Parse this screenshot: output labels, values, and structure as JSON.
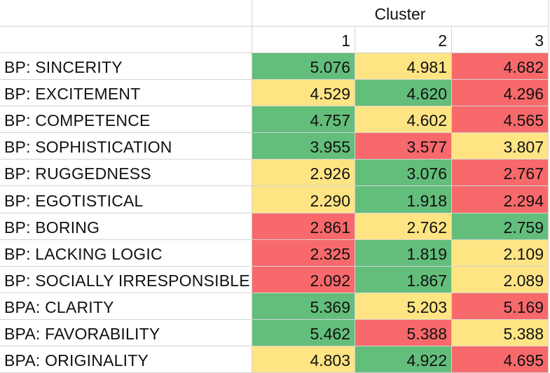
{
  "header": {
    "cluster_label": "Cluster",
    "cluster_ids": [
      "1",
      "2",
      "3"
    ]
  },
  "colors": {
    "high": "#63be7b",
    "mid": "#ffe484",
    "low": "#f8696b"
  },
  "rows": [
    {
      "label": "BP: SINCERITY",
      "values": [
        "5.076",
        "4.981",
        "4.682"
      ],
      "colors": [
        "high",
        "mid",
        "low"
      ]
    },
    {
      "label": "BP: EXCITEMENT",
      "values": [
        "4.529",
        "4.620",
        "4.296"
      ],
      "colors": [
        "mid",
        "high",
        "low"
      ]
    },
    {
      "label": "BP: COMPETENCE",
      "values": [
        "4.757",
        "4.602",
        "4.565"
      ],
      "colors": [
        "high",
        "mid",
        "low"
      ]
    },
    {
      "label": "BP: SOPHISTICATION",
      "values": [
        "3.955",
        "3.577",
        "3.807"
      ],
      "colors": [
        "high",
        "low",
        "mid"
      ]
    },
    {
      "label": "BP: RUGGEDNESS",
      "values": [
        "2.926",
        "3.076",
        "2.767"
      ],
      "colors": [
        "mid",
        "high",
        "low"
      ]
    },
    {
      "label": "BP: EGOTISTICAL",
      "values": [
        "2.290",
        "1.918",
        "2.294"
      ],
      "colors": [
        "mid",
        "high",
        "low"
      ]
    },
    {
      "label": "BP: BORING",
      "values": [
        "2.861",
        "2.762",
        "2.759"
      ],
      "colors": [
        "low",
        "mid",
        "high"
      ]
    },
    {
      "label": "BP: LACKING LOGIC",
      "values": [
        "2.325",
        "1.819",
        "2.109"
      ],
      "colors": [
        "low",
        "high",
        "mid"
      ]
    },
    {
      "label": "BP: SOCIALLY IRRESPONSIBLE",
      "values": [
        "2.092",
        "1.867",
        "2.089"
      ],
      "colors": [
        "low",
        "high",
        "mid"
      ]
    },
    {
      "label": "BPA: CLARITY",
      "values": [
        "5.369",
        "5.203",
        "5.169"
      ],
      "colors": [
        "high",
        "mid",
        "low"
      ]
    },
    {
      "label": "BPA: FAVORABILITY",
      "values": [
        "5.462",
        "5.388",
        "5.388"
      ],
      "colors": [
        "high",
        "low",
        "mid"
      ]
    },
    {
      "label": "BPA:  ORIGINALITY",
      "values": [
        "4.803",
        "4.922",
        "4.695"
      ],
      "colors": [
        "mid",
        "high",
        "low"
      ]
    }
  ]
}
